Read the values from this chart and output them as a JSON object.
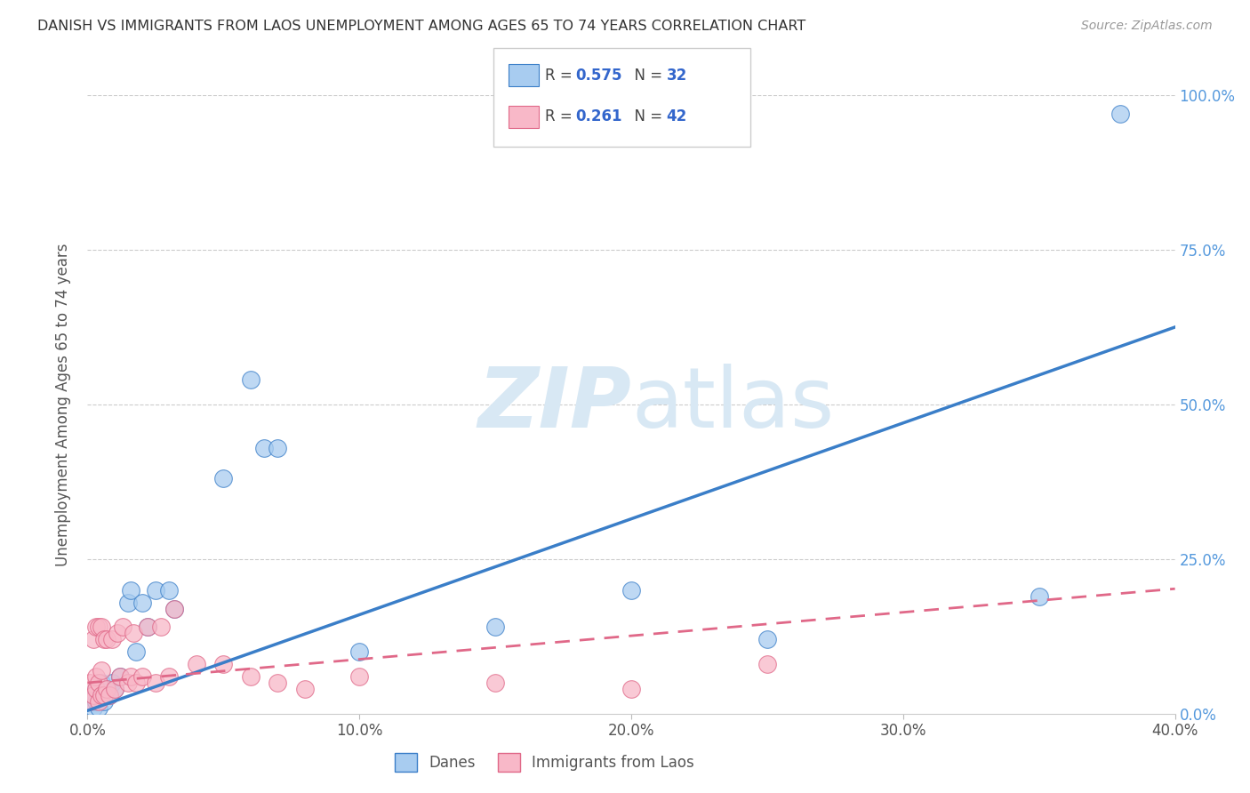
{
  "title": "DANISH VS IMMIGRANTS FROM LAOS UNEMPLOYMENT AMONG AGES 65 TO 74 YEARS CORRELATION CHART",
  "source": "Source: ZipAtlas.com",
  "ylabel": "Unemployment Among Ages 65 to 74 years",
  "legend_label1": "Danes",
  "legend_label2": "Immigrants from Laos",
  "R1": 0.575,
  "N1": 32,
  "R2": 0.261,
  "N2": 42,
  "color_blue": "#A8CCF0",
  "color_pink": "#F8B8C8",
  "color_blue_line": "#3A7EC8",
  "color_pink_line": "#E06888",
  "danes_x": [
    0.001,
    0.002,
    0.002,
    0.003,
    0.003,
    0.004,
    0.005,
    0.005,
    0.006,
    0.007,
    0.008,
    0.009,
    0.01,
    0.012,
    0.015,
    0.016,
    0.018,
    0.02,
    0.022,
    0.025,
    0.03,
    0.032,
    0.05,
    0.06,
    0.065,
    0.07,
    0.1,
    0.15,
    0.2,
    0.25,
    0.35,
    0.38
  ],
  "danes_y": [
    0.02,
    0.01,
    0.03,
    0.02,
    0.04,
    0.01,
    0.03,
    0.05,
    0.02,
    0.04,
    0.03,
    0.05,
    0.04,
    0.06,
    0.18,
    0.2,
    0.1,
    0.18,
    0.14,
    0.2,
    0.2,
    0.17,
    0.38,
    0.54,
    0.43,
    0.43,
    0.1,
    0.14,
    0.2,
    0.12,
    0.19,
    0.97
  ],
  "laos_x": [
    0.001,
    0.001,
    0.002,
    0.002,
    0.003,
    0.003,
    0.003,
    0.004,
    0.004,
    0.004,
    0.005,
    0.005,
    0.005,
    0.006,
    0.006,
    0.007,
    0.007,
    0.008,
    0.009,
    0.01,
    0.011,
    0.012,
    0.013,
    0.015,
    0.016,
    0.017,
    0.018,
    0.02,
    0.022,
    0.025,
    0.027,
    0.03,
    0.032,
    0.04,
    0.05,
    0.06,
    0.07,
    0.08,
    0.1,
    0.15,
    0.2,
    0.25
  ],
  "laos_y": [
    0.02,
    0.05,
    0.03,
    0.12,
    0.04,
    0.06,
    0.14,
    0.02,
    0.05,
    0.14,
    0.03,
    0.07,
    0.14,
    0.03,
    0.12,
    0.04,
    0.12,
    0.03,
    0.12,
    0.04,
    0.13,
    0.06,
    0.14,
    0.05,
    0.06,
    0.13,
    0.05,
    0.06,
    0.14,
    0.05,
    0.14,
    0.06,
    0.17,
    0.08,
    0.08,
    0.06,
    0.05,
    0.04,
    0.06,
    0.05,
    0.04,
    0.08
  ],
  "xlim": [
    0.0,
    0.4
  ],
  "ylim": [
    0.0,
    1.0
  ],
  "background_color": "#ffffff",
  "watermark_color": "#d8e8f4"
}
